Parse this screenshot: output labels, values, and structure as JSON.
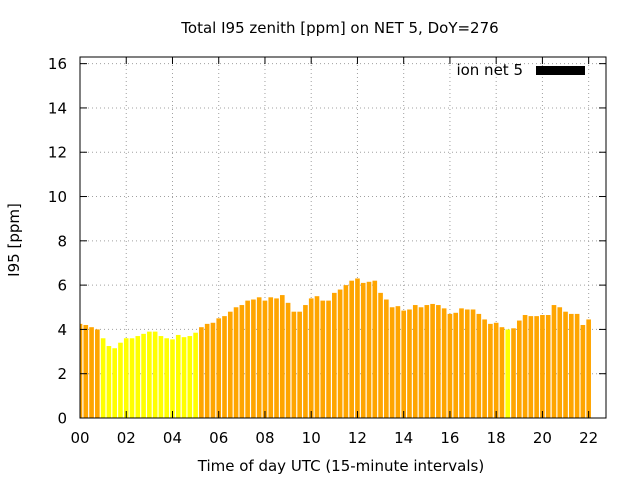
{
  "chart_data": {
    "type": "bar",
    "title": "Total I95 zenith [ppm] on NET 5, DoY=276",
    "xlabel": "Time of day UTC (15-minute intervals)",
    "ylabel": "I95 [ppm]",
    "xlim": [
      0,
      22.75
    ],
    "ylim": [
      0,
      16.3
    ],
    "x_ticks": [
      "00",
      "02",
      "04",
      "06",
      "08",
      "10",
      "12",
      "14",
      "16",
      "18",
      "20",
      "22"
    ],
    "y_ticks": [
      "0",
      "2",
      "4",
      "6",
      "8",
      "10",
      "12",
      "14",
      "16"
    ],
    "grid": true,
    "legend_position": "top-right",
    "bar_colors": {
      "high": "#ffa500",
      "low": "#ffff00"
    },
    "legend_color": "#000000",
    "series": [
      {
        "name": "ion net 5",
        "values": [
          4.25,
          4.2,
          4.1,
          4.0,
          3.6,
          3.25,
          3.15,
          3.4,
          3.6,
          3.6,
          3.7,
          3.8,
          3.9,
          3.9,
          3.7,
          3.6,
          3.55,
          3.75,
          3.65,
          3.7,
          3.85,
          4.1,
          4.25,
          4.3,
          4.5,
          4.6,
          4.8,
          5.0,
          5.1,
          5.3,
          5.35,
          5.45,
          5.3,
          5.45,
          5.4,
          5.55,
          5.2,
          4.8,
          4.8,
          5.1,
          5.4,
          5.5,
          5.3,
          5.3,
          5.65,
          5.8,
          6.0,
          6.2,
          6.3,
          6.1,
          6.15,
          6.2,
          5.65,
          5.35,
          5.0,
          5.05,
          4.85,
          4.9,
          5.1,
          5.0,
          5.1,
          5.15,
          5.1,
          4.95,
          4.7,
          4.75,
          4.95,
          4.9,
          4.9,
          4.7,
          4.45,
          4.25,
          4.3,
          4.1,
          4.0,
          4.05,
          4.4,
          4.65,
          4.6,
          4.6,
          4.65,
          4.65,
          5.1,
          5.0,
          4.8,
          4.7,
          4.7,
          4.2,
          4.45
        ],
        "levels": [
          "high",
          "high",
          "high",
          "high",
          "low",
          "low",
          "low",
          "low",
          "low",
          "low",
          "low",
          "low",
          "low",
          "low",
          "low",
          "low",
          "low",
          "low",
          "low",
          "low",
          "low",
          "high",
          "high",
          "high",
          "high",
          "high",
          "high",
          "high",
          "high",
          "high",
          "high",
          "high",
          "high",
          "high",
          "high",
          "high",
          "high",
          "high",
          "high",
          "high",
          "high",
          "high",
          "high",
          "high",
          "high",
          "high",
          "high",
          "high",
          "high",
          "high",
          "high",
          "high",
          "high",
          "high",
          "high",
          "high",
          "high",
          "high",
          "high",
          "high",
          "high",
          "high",
          "high",
          "high",
          "high",
          "high",
          "high",
          "high",
          "high",
          "high",
          "high",
          "high",
          "high",
          "high",
          "low",
          "high",
          "high",
          "high",
          "high",
          "high",
          "high",
          "high",
          "high",
          "high",
          "high",
          "high",
          "high",
          "high",
          "high"
        ]
      }
    ]
  }
}
